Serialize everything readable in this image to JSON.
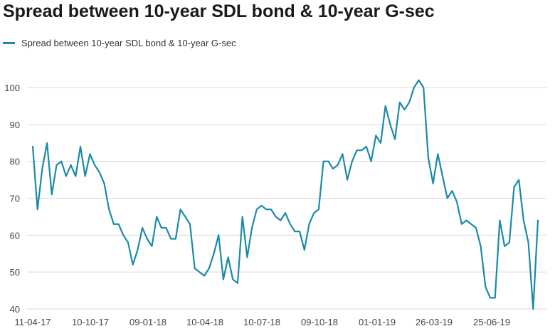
{
  "title": "Spread between 10-year SDL bond & 10-year G-sec",
  "colors": {
    "series": "#1a8aa8",
    "grid": "#d9d9d9"
  },
  "chart_data": {
    "type": "line",
    "title": "Spread between 10-year SDL bond & 10-year G-sec",
    "xlabel": "",
    "ylabel": "",
    "ylim": [
      40,
      102
    ],
    "yticks": [
      40,
      50,
      60,
      70,
      80,
      90,
      100
    ],
    "xtick_labels": [
      "11-04-17",
      "10-10-17",
      "09-01-18",
      "10-04-18",
      "10-07-18",
      "09-10-18",
      "01-01-19",
      "26-03-19",
      "25-06-19"
    ],
    "grid": true,
    "legend_position": "top-left",
    "series": [
      {
        "name": "Spread between 10-year SDL bond & 10-year G-sec",
        "values": [
          84,
          67,
          78,
          85,
          71,
          79,
          80,
          76,
          79,
          76,
          84,
          76,
          82,
          79,
          77,
          74,
          67,
          63,
          63,
          60,
          58,
          52,
          56,
          62,
          59,
          57,
          65,
          62,
          62,
          59,
          59,
          67,
          65,
          63,
          51,
          50,
          49,
          51,
          55,
          60,
          48,
          54,
          48,
          47,
          65,
          54,
          62,
          67,
          68,
          67,
          67,
          65,
          64,
          66,
          63,
          61,
          61,
          56,
          63,
          66,
          67,
          80,
          80,
          78,
          79,
          82,
          75,
          80,
          83,
          83,
          84,
          80,
          87,
          85,
          95,
          90,
          86,
          96,
          94,
          96,
          100,
          102,
          100,
          81,
          74,
          82,
          76,
          70,
          72,
          69,
          63,
          64,
          63,
          62,
          57,
          46,
          43,
          43,
          64,
          57,
          58,
          73,
          75,
          64,
          58,
          40,
          64
        ]
      }
    ]
  }
}
